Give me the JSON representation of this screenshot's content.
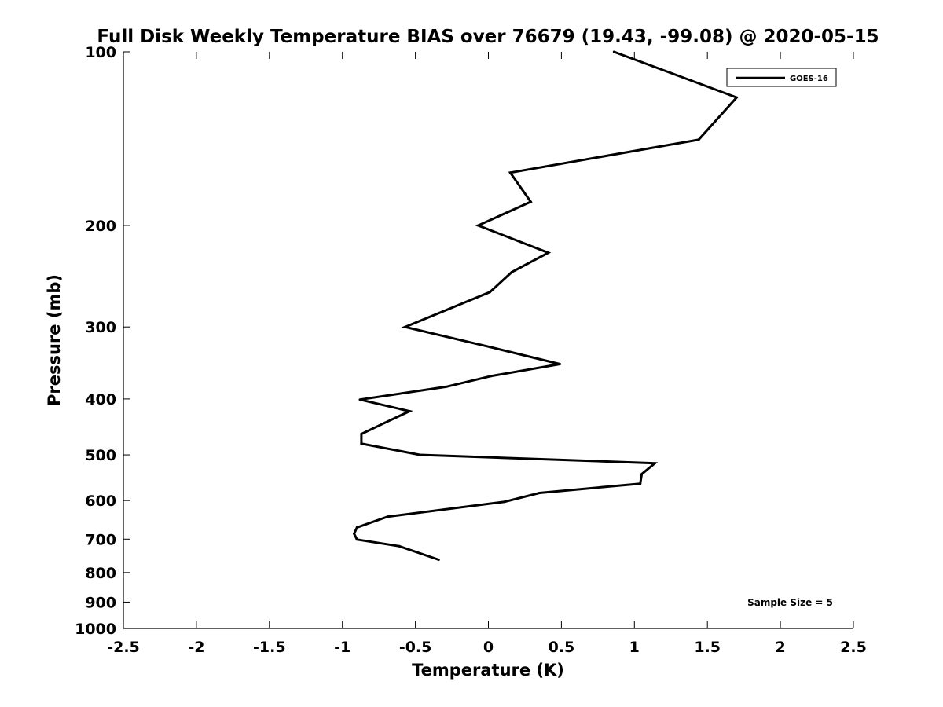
{
  "chart_data": {
    "type": "line",
    "title": "Full Disk Weekly Temperature BIAS over 76679 (19.43, -99.08) @ 2020-05-15",
    "xlabel": "Temperature (K)",
    "ylabel": "Pressure (mb)",
    "xlim": [
      -2.5,
      2.5
    ],
    "ylim": [
      100,
      1000
    ],
    "y_scale": "log",
    "y_reversed": true,
    "x_ticks": [
      -2.5,
      -2,
      -1.5,
      -1,
      -0.5,
      0,
      0.5,
      1,
      1.5,
      2,
      2.5
    ],
    "x_tick_labels": [
      "-2.5",
      "-2",
      "-1.5",
      "-1",
      "-0.5",
      "0",
      "0.5",
      "1",
      "1.5",
      "2",
      "2.5"
    ],
    "y_ticks": [
      100,
      200,
      300,
      400,
      500,
      600,
      700,
      800,
      900,
      1000
    ],
    "y_tick_labels": [
      "100",
      "200",
      "300",
      "400",
      "500",
      "600",
      "700",
      "800",
      "900",
      "1000"
    ],
    "grid": false,
    "legend_position": "top-right",
    "annotation": "Sample Size = 5",
    "series": [
      {
        "name": "GOES-16",
        "color": "#000000",
        "points": [
          {
            "x": 0.86,
            "y": 100
          },
          {
            "x": 1.7,
            "y": 120
          },
          {
            "x": 1.44,
            "y": 142
          },
          {
            "x": 0.15,
            "y": 162
          },
          {
            "x": 0.29,
            "y": 182
          },
          {
            "x": -0.07,
            "y": 200
          },
          {
            "x": 0.41,
            "y": 223
          },
          {
            "x": 0.16,
            "y": 241
          },
          {
            "x": 0.01,
            "y": 261
          },
          {
            "x": -0.57,
            "y": 300
          },
          {
            "x": 0.01,
            "y": 325
          },
          {
            "x": 0.49,
            "y": 348
          },
          {
            "x": 0.02,
            "y": 365
          },
          {
            "x": -0.29,
            "y": 381
          },
          {
            "x": -0.88,
            "y": 401
          },
          {
            "x": -0.54,
            "y": 420
          },
          {
            "x": -0.71,
            "y": 440
          },
          {
            "x": -0.87,
            "y": 460
          },
          {
            "x": -0.87,
            "y": 478
          },
          {
            "x": -0.47,
            "y": 500
          },
          {
            "x": 1.14,
            "y": 517
          },
          {
            "x": 1.05,
            "y": 540
          },
          {
            "x": 1.04,
            "y": 561
          },
          {
            "x": 0.35,
            "y": 582
          },
          {
            "x": 0.11,
            "y": 603
          },
          {
            "x": -0.69,
            "y": 640
          },
          {
            "x": -0.9,
            "y": 668
          },
          {
            "x": -0.92,
            "y": 685
          },
          {
            "x": -0.9,
            "y": 701
          },
          {
            "x": -0.61,
            "y": 720
          },
          {
            "x": -0.34,
            "y": 760
          }
        ]
      }
    ]
  }
}
